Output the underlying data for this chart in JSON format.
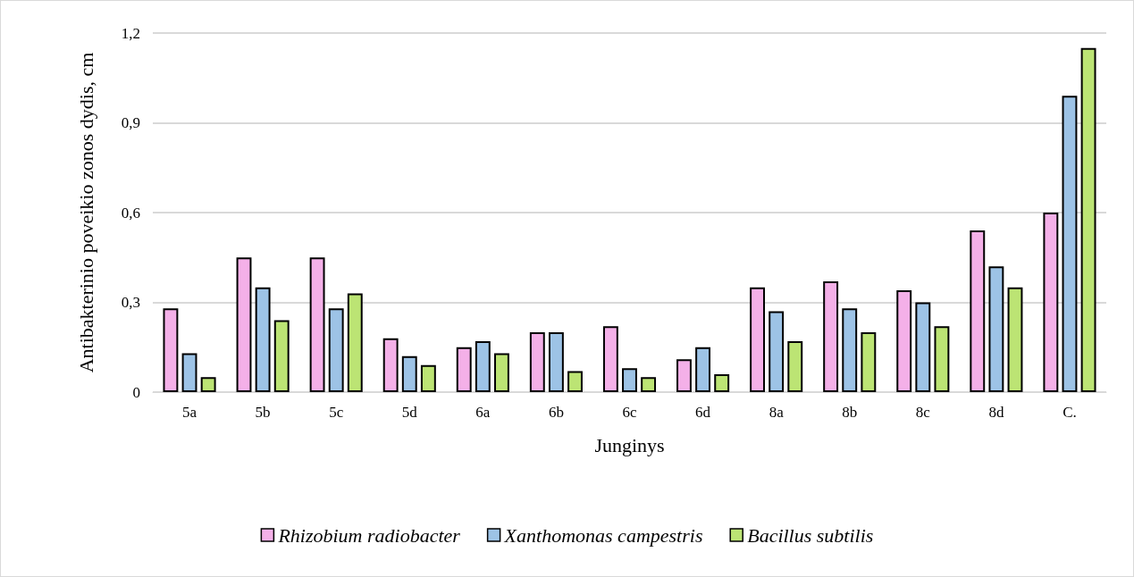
{
  "chart_data": {
    "type": "bar",
    "xlabel": "Junginys",
    "ylabel": "Antibakterinio poveikio zonos dydis, cm",
    "categories": [
      "5a",
      "5b",
      "5c",
      "5d",
      "6a",
      "6b",
      "6c",
      "6d",
      "8a",
      "8b",
      "8c",
      "8d",
      "C."
    ],
    "series": [
      {
        "name": "Rhizobium radiobacter",
        "color": "#f4b0e8",
        "values": [
          0.28,
          0.45,
          0.45,
          0.18,
          0.15,
          0.2,
          0.22,
          0.11,
          0.35,
          0.37,
          0.34,
          0.54,
          0.6
        ]
      },
      {
        "name": "Xanthomonas campestris",
        "color": "#9dc3e6",
        "values": [
          0.13,
          0.35,
          0.28,
          0.12,
          0.17,
          0.2,
          0.08,
          0.15,
          0.27,
          0.28,
          0.3,
          0.42,
          0.99
        ]
      },
      {
        "name": "Bacillus subtilis",
        "color": "#bce474",
        "values": [
          0.05,
          0.24,
          0.33,
          0.09,
          0.13,
          0.07,
          0.05,
          0.06,
          0.17,
          0.2,
          0.22,
          0.35,
          1.15
        ]
      }
    ],
    "ylim": [
      0,
      1.2
    ],
    "yticks": [
      {
        "value": 0,
        "label": "0"
      },
      {
        "value": 0.3,
        "label": "0,3"
      },
      {
        "value": 0.6,
        "label": "0,6"
      },
      {
        "value": 0.9,
        "label": "0,9"
      },
      {
        "value": 1.2,
        "label": "1,2"
      }
    ],
    "grid": "y",
    "legend": "bottom"
  }
}
